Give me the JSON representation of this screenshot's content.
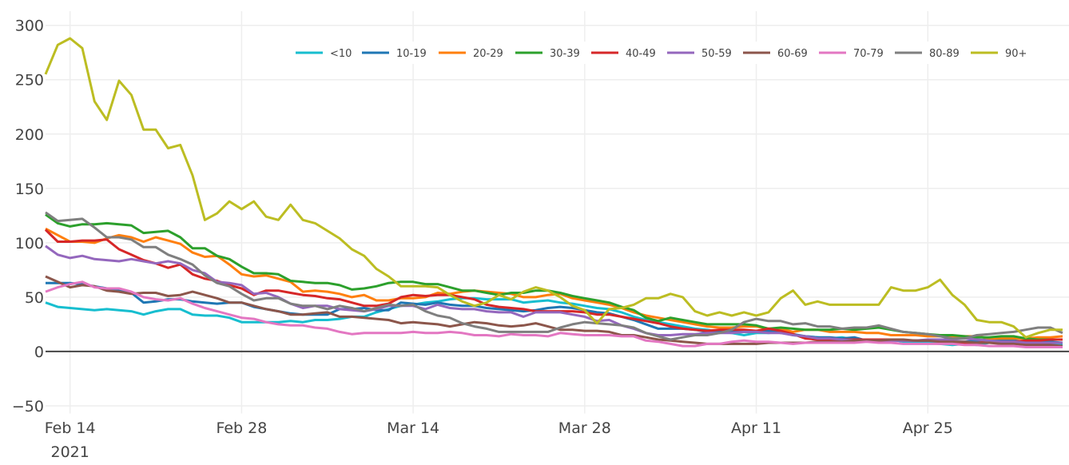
{
  "chart_data": {
    "type": "line",
    "title": "",
    "xlabel": "",
    "ylabel": "",
    "ylim": [
      -57,
      313
    ],
    "xlim": [
      "2021-02-12",
      "2021-05-06"
    ],
    "grid": true,
    "legend_placement": "top-right, horizontal",
    "y_ticks": [
      "−50",
      "0",
      "50",
      "100",
      "150",
      "200",
      "250",
      "300"
    ],
    "y_tick_values": [
      -50,
      0,
      50,
      100,
      150,
      200,
      250,
      300
    ],
    "x_ticks": [
      {
        "date": "2021-02-14",
        "label": "Feb 14",
        "sublabel": "2021"
      },
      {
        "date": "2021-02-28",
        "label": "Feb 28"
      },
      {
        "date": "2021-03-14",
        "label": "Mar 14"
      },
      {
        "date": "2021-03-28",
        "label": "Mar 28"
      },
      {
        "date": "2021-04-11",
        "label": "Apr 11"
      },
      {
        "date": "2021-04-25",
        "label": "Apr 25"
      }
    ],
    "x": [
      "2021-02-12",
      "2021-02-13",
      "2021-02-14",
      "2021-02-15",
      "2021-02-16",
      "2021-02-17",
      "2021-02-18",
      "2021-02-19",
      "2021-02-20",
      "2021-02-21",
      "2021-02-22",
      "2021-02-23",
      "2021-02-24",
      "2021-02-25",
      "2021-02-26",
      "2021-02-27",
      "2021-02-28",
      "2021-03-01",
      "2021-03-02",
      "2021-03-03",
      "2021-03-04",
      "2021-03-05",
      "2021-03-06",
      "2021-03-07",
      "2021-03-08",
      "2021-03-09",
      "2021-03-10",
      "2021-03-11",
      "2021-03-12",
      "2021-03-13",
      "2021-03-14",
      "2021-03-15",
      "2021-03-16",
      "2021-03-17",
      "2021-03-18",
      "2021-03-19",
      "2021-03-20",
      "2021-03-21",
      "2021-03-22",
      "2021-03-23",
      "2021-03-24",
      "2021-03-25",
      "2021-03-26",
      "2021-03-27",
      "2021-03-28",
      "2021-03-29",
      "2021-03-30",
      "2021-03-31",
      "2021-04-01",
      "2021-04-02",
      "2021-04-03",
      "2021-04-04",
      "2021-04-05",
      "2021-04-06",
      "2021-04-07",
      "2021-04-08",
      "2021-04-09",
      "2021-04-10",
      "2021-04-11",
      "2021-04-12",
      "2021-04-13",
      "2021-04-14",
      "2021-04-15",
      "2021-04-16",
      "2021-04-17",
      "2021-04-18",
      "2021-04-19",
      "2021-04-20",
      "2021-04-21",
      "2021-04-22",
      "2021-04-23",
      "2021-04-24",
      "2021-04-25",
      "2021-04-26",
      "2021-04-27",
      "2021-04-28",
      "2021-04-29",
      "2021-04-30",
      "2021-05-01",
      "2021-05-02",
      "2021-05-03",
      "2021-05-04",
      "2021-05-05",
      "2021-05-06"
    ],
    "series": [
      {
        "name": "<10",
        "color": "#17becf",
        "values": [
          45,
          41,
          40,
          39,
          38,
          39,
          38,
          37,
          34,
          37,
          39,
          39,
          34,
          33,
          33,
          31,
          27,
          27,
          27,
          27,
          28,
          27,
          29,
          29,
          30,
          32,
          32,
          36,
          39,
          42,
          43,
          45,
          46,
          48,
          49,
          49,
          48,
          48,
          48,
          45,
          46,
          47,
          45,
          44,
          42,
          40,
          39,
          36,
          32,
          29,
          27,
          25,
          23,
          21,
          20,
          18,
          17,
          15,
          17,
          17,
          18,
          15,
          14,
          13,
          12,
          13,
          11,
          11,
          11,
          11,
          9,
          9,
          8,
          7,
          6,
          7,
          6,
          8,
          8,
          8,
          8,
          7,
          7,
          7
        ]
      },
      {
        "name": "10-19",
        "color": "#1f77b4",
        "values": [
          63,
          63,
          63,
          62,
          60,
          58,
          56,
          54,
          45,
          46,
          48,
          48,
          46,
          45,
          44,
          45,
          45,
          41,
          39,
          37,
          35,
          34,
          34,
          34,
          39,
          39,
          40,
          38,
          38,
          45,
          44,
          43,
          45,
          43,
          42,
          42,
          40,
          39,
          38,
          37,
          38,
          40,
          41,
          40,
          38,
          36,
          35,
          32,
          29,
          25,
          21,
          21,
          21,
          20,
          18,
          18,
          18,
          18,
          18,
          19,
          17,
          16,
          14,
          13,
          13,
          12,
          13,
          10,
          10,
          10,
          10,
          10,
          10,
          10,
          9,
          9,
          10,
          11,
          11,
          10,
          9,
          9,
          9,
          8
        ]
      },
      {
        "name": "20-29",
        "color": "#ff7f0e",
        "values": [
          113,
          107,
          101,
          101,
          100,
          104,
          107,
          105,
          101,
          105,
          102,
          99,
          91,
          87,
          88,
          80,
          71,
          69,
          70,
          67,
          64,
          55,
          56,
          55,
          53,
          50,
          52,
          47,
          47,
          49,
          49,
          50,
          54,
          53,
          55,
          56,
          55,
          54,
          53,
          50,
          50,
          52,
          53,
          49,
          47,
          45,
          43,
          40,
          36,
          33,
          31,
          29,
          27,
          25,
          23,
          22,
          22,
          23,
          23,
          21,
          21,
          18,
          20,
          20,
          18,
          18,
          18,
          17,
          17,
          15,
          15,
          15,
          14,
          14,
          14,
          14,
          14,
          12,
          12,
          12,
          12,
          13,
          13,
          14
        ]
      },
      {
        "name": "30-39",
        "color": "#2ca02c",
        "values": [
          126,
          118,
          115,
          117,
          117,
          118,
          117,
          116,
          109,
          110,
          111,
          105,
          95,
          95,
          88,
          85,
          78,
          72,
          72,
          71,
          65,
          64,
          63,
          63,
          61,
          57,
          58,
          60,
          63,
          64,
          64,
          62,
          62,
          59,
          56,
          56,
          54,
          52,
          54,
          54,
          56,
          56,
          54,
          51,
          49,
          47,
          45,
          41,
          38,
          31,
          28,
          31,
          29,
          27,
          25,
          25,
          25,
          25,
          24,
          21,
          22,
          21,
          20,
          20,
          20,
          21,
          20,
          21,
          22,
          20,
          18,
          17,
          16,
          15,
          15,
          14,
          13,
          13,
          14,
          14,
          12,
          11,
          11,
          11
        ]
      },
      {
        "name": "40-49",
        "color": "#d62728",
        "values": [
          112,
          101,
          101,
          102,
          102,
          103,
          94,
          89,
          84,
          81,
          77,
          80,
          71,
          67,
          65,
          61,
          58,
          52,
          56,
          56,
          54,
          52,
          51,
          49,
          48,
          45,
          42,
          42,
          44,
          50,
          52,
          51,
          52,
          52,
          50,
          48,
          43,
          41,
          40,
          39,
          37,
          37,
          37,
          37,
          36,
          34,
          34,
          32,
          30,
          28,
          26,
          23,
          21,
          20,
          19,
          20,
          20,
          20,
          19,
          21,
          19,
          16,
          12,
          11,
          11,
          11,
          11,
          11,
          11,
          11,
          10,
          10,
          10,
          10,
          9,
          8,
          8,
          9,
          9,
          9,
          10,
          10,
          11,
          11
        ]
      },
      {
        "name": "50-59",
        "color": "#9467bd",
        "values": [
          97,
          89,
          86,
          88,
          85,
          84,
          83,
          85,
          83,
          81,
          83,
          81,
          75,
          72,
          64,
          63,
          61,
          53,
          54,
          50,
          44,
          40,
          42,
          42,
          39,
          38,
          37,
          39,
          42,
          42,
          42,
          39,
          43,
          40,
          39,
          39,
          37,
          36,
          36,
          32,
          36,
          36,
          36,
          34,
          32,
          28,
          29,
          24,
          21,
          17,
          15,
          15,
          16,
          16,
          17,
          17,
          17,
          18,
          18,
          17,
          17,
          15,
          14,
          12,
          12,
          11,
          10,
          10,
          10,
          10,
          10,
          10,
          11,
          11,
          11,
          12,
          11,
          10,
          9,
          9,
          8,
          8,
          8,
          8
        ]
      },
      {
        "name": "60-69",
        "color": "#8c564b",
        "values": [
          69,
          64,
          59,
          61,
          60,
          56,
          55,
          53,
          54,
          54,
          51,
          52,
          55,
          52,
          49,
          45,
          45,
          42,
          39,
          37,
          34,
          34,
          35,
          36,
          32,
          32,
          31,
          30,
          29,
          26,
          27,
          26,
          25,
          23,
          25,
          27,
          26,
          24,
          23,
          24,
          26,
          23,
          20,
          20,
          19,
          19,
          18,
          15,
          15,
          13,
          11,
          10,
          9,
          8,
          7,
          7,
          7,
          7,
          7,
          8,
          8,
          8,
          8,
          9,
          9,
          9,
          10,
          10,
          10,
          11,
          11,
          10,
          10,
          9,
          9,
          9,
          8,
          8,
          7,
          7,
          6,
          6,
          6,
          5
        ]
      },
      {
        "name": "70-79",
        "color": "#e377c2",
        "values": [
          55,
          59,
          62,
          64,
          59,
          58,
          58,
          55,
          50,
          48,
          47,
          49,
          44,
          40,
          37,
          34,
          31,
          30,
          27,
          25,
          24,
          24,
          22,
          21,
          18,
          16,
          17,
          17,
          17,
          17,
          18,
          17,
          17,
          18,
          17,
          15,
          15,
          14,
          16,
          15,
          15,
          14,
          17,
          16,
          15,
          15,
          15,
          14,
          14,
          10,
          9,
          7,
          5,
          5,
          7,
          7,
          9,
          10,
          9,
          9,
          8,
          7,
          8,
          8,
          8,
          8,
          8,
          9,
          8,
          8,
          7,
          7,
          7,
          7,
          7,
          6,
          6,
          5,
          5,
          5,
          4,
          4,
          4,
          4
        ]
      },
      {
        "name": "80-89",
        "color": "#7f7f7f",
        "values": [
          128,
          120,
          121,
          122,
          114,
          105,
          105,
          103,
          96,
          96,
          89,
          85,
          80,
          70,
          63,
          60,
          53,
          47,
          49,
          49,
          44,
          42,
          42,
          39,
          42,
          40,
          37,
          40,
          43,
          42,
          43,
          37,
          33,
          31,
          26,
          23,
          21,
          18,
          18,
          18,
          18,
          18,
          22,
          25,
          27,
          26,
          25,
          24,
          22,
          17,
          14,
          11,
          13,
          15,
          15,
          17,
          20,
          27,
          30,
          28,
          28,
          25,
          26,
          23,
          23,
          21,
          22,
          22,
          24,
          21,
          18,
          17,
          16,
          14,
          12,
          12,
          15,
          16,
          17,
          18,
          20,
          22,
          22,
          17
        ]
      },
      {
        "name": "90+",
        "color": "#bcbd22",
        "values": [
          255,
          282,
          288,
          279,
          230,
          213,
          249,
          236,
          204,
          204,
          187,
          190,
          162,
          121,
          127,
          138,
          131,
          138,
          124,
          121,
          135,
          121,
          118,
          111,
          104,
          94,
          88,
          76,
          69,
          60,
          60,
          60,
          59,
          52,
          46,
          42,
          45,
          52,
          48,
          55,
          59,
          56,
          50,
          42,
          38,
          26,
          39,
          40,
          43,
          49,
          49,
          53,
          50,
          37,
          33,
          36,
          33,
          36,
          33,
          36,
          49,
          56,
          43,
          46,
          43,
          43,
          43,
          43,
          43,
          59,
          56,
          56,
          59,
          66,
          52,
          43,
          29,
          27,
          27,
          23,
          13,
          17,
          20,
          20
        ]
      }
    ]
  }
}
